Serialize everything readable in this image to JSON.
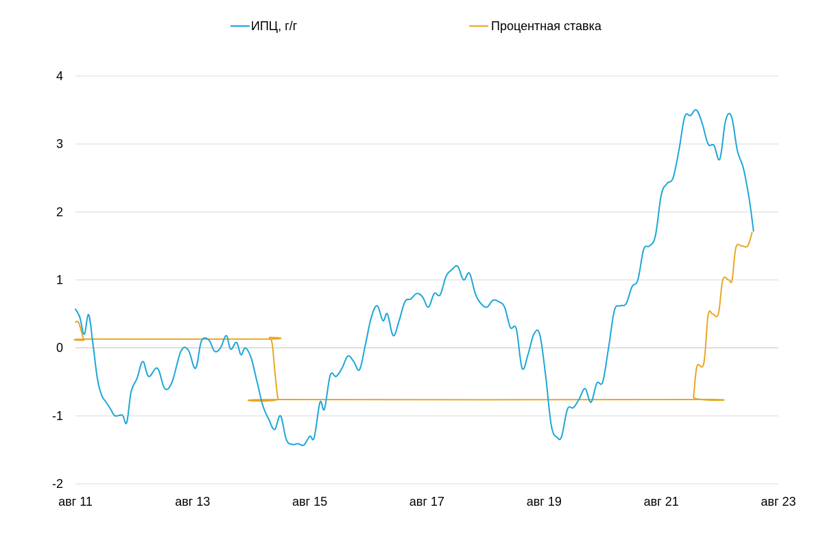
{
  "chart_data": {
    "type": "line",
    "title": "",
    "xlabel": "",
    "ylabel": "",
    "ylim": [
      -2,
      4
    ],
    "yticks": [
      -2,
      -1,
      0,
      1,
      2,
      3,
      4
    ],
    "xlim": [
      0,
      24
    ],
    "x_ticks": [
      {
        "x": 0,
        "label": "авг 11"
      },
      {
        "x": 4,
        "label": "авг 13"
      },
      {
        "x": 8,
        "label": "авг 15"
      },
      {
        "x": 12,
        "label": "авг 17"
      },
      {
        "x": 16,
        "label": "авг 19"
      },
      {
        "x": 20,
        "label": "авг 21"
      },
      {
        "x": 24,
        "label": "авг 23"
      }
    ],
    "legend_position": "top",
    "series": [
      {
        "name": "ИПЦ, г/г",
        "color": "#1ba6d8",
        "points": [
          [
            0,
            0.57
          ],
          [
            0.15,
            0.45
          ],
          [
            0.3,
            0.2
          ],
          [
            0.45,
            0.49
          ],
          [
            0.6,
            0.05
          ],
          [
            0.75,
            -0.45
          ],
          [
            0.9,
            -0.7
          ],
          [
            1.05,
            -0.8
          ],
          [
            1.2,
            -0.9
          ],
          [
            1.35,
            -1.0
          ],
          [
            1.6,
            -0.99
          ],
          [
            1.75,
            -1.1
          ],
          [
            1.9,
            -0.65
          ],
          [
            2.1,
            -0.45
          ],
          [
            2.3,
            -0.2
          ],
          [
            2.5,
            -0.42
          ],
          [
            2.8,
            -0.3
          ],
          [
            3.05,
            -0.6
          ],
          [
            3.3,
            -0.5
          ],
          [
            3.6,
            -0.05
          ],
          [
            3.85,
            -0.03
          ],
          [
            4.1,
            -0.3
          ],
          [
            4.3,
            0.1
          ],
          [
            4.55,
            0.12
          ],
          [
            4.75,
            -0.05
          ],
          [
            4.95,
            0.0
          ],
          [
            5.15,
            0.18
          ],
          [
            5.3,
            -0.02
          ],
          [
            5.5,
            0.08
          ],
          [
            5.65,
            -0.1
          ],
          [
            5.8,
            0.0
          ],
          [
            6.0,
            -0.15
          ],
          [
            6.2,
            -0.5
          ],
          [
            6.4,
            -0.85
          ],
          [
            6.6,
            -1.05
          ],
          [
            6.8,
            -1.2
          ],
          [
            7.0,
            -1.0
          ],
          [
            7.2,
            -1.35
          ],
          [
            7.4,
            -1.42
          ],
          [
            7.6,
            -1.41
          ],
          [
            7.8,
            -1.43
          ],
          [
            8.0,
            -1.3
          ],
          [
            8.15,
            -1.32
          ],
          [
            8.35,
            -0.8
          ],
          [
            8.5,
            -0.9
          ],
          [
            8.7,
            -0.4
          ],
          [
            8.9,
            -0.42
          ],
          [
            9.1,
            -0.3
          ],
          [
            9.3,
            -0.12
          ],
          [
            9.5,
            -0.2
          ],
          [
            9.7,
            -0.32
          ],
          [
            9.9,
            0.05
          ],
          [
            10.1,
            0.45
          ],
          [
            10.3,
            0.62
          ],
          [
            10.5,
            0.4
          ],
          [
            10.65,
            0.5
          ],
          [
            10.85,
            0.18
          ],
          [
            11.05,
            0.4
          ],
          [
            11.25,
            0.68
          ],
          [
            11.45,
            0.72
          ],
          [
            11.65,
            0.8
          ],
          [
            11.85,
            0.75
          ],
          [
            12.05,
            0.6
          ],
          [
            12.25,
            0.8
          ],
          [
            12.45,
            0.78
          ],
          [
            12.65,
            1.05
          ],
          [
            12.85,
            1.15
          ],
          [
            13.05,
            1.2
          ],
          [
            13.25,
            1.0
          ],
          [
            13.45,
            1.1
          ],
          [
            13.65,
            0.8
          ],
          [
            13.85,
            0.65
          ],
          [
            14.05,
            0.6
          ],
          [
            14.25,
            0.7
          ],
          [
            14.45,
            0.68
          ],
          [
            14.65,
            0.6
          ],
          [
            14.85,
            0.3
          ],
          [
            15.05,
            0.28
          ],
          [
            15.25,
            -0.3
          ],
          [
            15.45,
            -0.1
          ],
          [
            15.65,
            0.2
          ],
          [
            15.85,
            0.2
          ],
          [
            16.05,
            -0.4
          ],
          [
            16.25,
            -1.15
          ],
          [
            16.45,
            -1.32
          ],
          [
            16.6,
            -1.3
          ],
          [
            16.8,
            -0.9
          ],
          [
            17.0,
            -0.88
          ],
          [
            17.2,
            -0.75
          ],
          [
            17.4,
            -0.6
          ],
          [
            17.6,
            -0.8
          ],
          [
            17.8,
            -0.52
          ],
          [
            18.0,
            -0.5
          ],
          [
            18.2,
            0.0
          ],
          [
            18.4,
            0.55
          ],
          [
            18.6,
            0.62
          ],
          [
            18.8,
            0.65
          ],
          [
            19.0,
            0.9
          ],
          [
            19.2,
            1.0
          ],
          [
            19.4,
            1.45
          ],
          [
            19.6,
            1.5
          ],
          [
            19.8,
            1.65
          ],
          [
            20.0,
            2.25
          ],
          [
            20.2,
            2.42
          ],
          [
            20.4,
            2.5
          ],
          [
            20.6,
            2.9
          ],
          [
            20.8,
            3.4
          ],
          [
            21.0,
            3.42
          ],
          [
            21.2,
            3.5
          ],
          [
            21.4,
            3.3
          ],
          [
            21.6,
            3.0
          ],
          [
            21.8,
            2.98
          ],
          [
            22.0,
            2.78
          ],
          [
            22.2,
            3.35
          ],
          [
            22.4,
            3.4
          ],
          [
            22.6,
            2.9
          ],
          [
            22.8,
            2.65
          ],
          [
            23.0,
            2.2
          ],
          [
            23.15,
            1.72
          ]
        ]
      },
      {
        "name": "Процентная ставка",
        "color": "#e9a623",
        "points": [
          [
            0,
            0.38
          ],
          [
            0.1,
            0.38
          ],
          [
            0.2,
            0.25
          ],
          [
            0.3,
            0.12
          ],
          [
            0.5,
            0.13
          ],
          [
            6.5,
            0.13
          ],
          [
            6.62,
            0.15
          ],
          [
            6.72,
            0.05
          ],
          [
            6.82,
            -0.4
          ],
          [
            6.92,
            -0.75
          ],
          [
            7.05,
            -0.76
          ],
          [
            21.0,
            -0.76
          ],
          [
            21.1,
            -0.72
          ],
          [
            21.22,
            -0.27
          ],
          [
            21.45,
            -0.23
          ],
          [
            21.6,
            0.48
          ],
          [
            21.75,
            0.5
          ],
          [
            21.95,
            0.5
          ],
          [
            22.1,
            1.0
          ],
          [
            22.3,
            1.0
          ],
          [
            22.42,
            1.0
          ],
          [
            22.55,
            1.48
          ],
          [
            22.75,
            1.5
          ],
          [
            22.95,
            1.5
          ],
          [
            23.1,
            1.7
          ]
        ]
      }
    ]
  }
}
